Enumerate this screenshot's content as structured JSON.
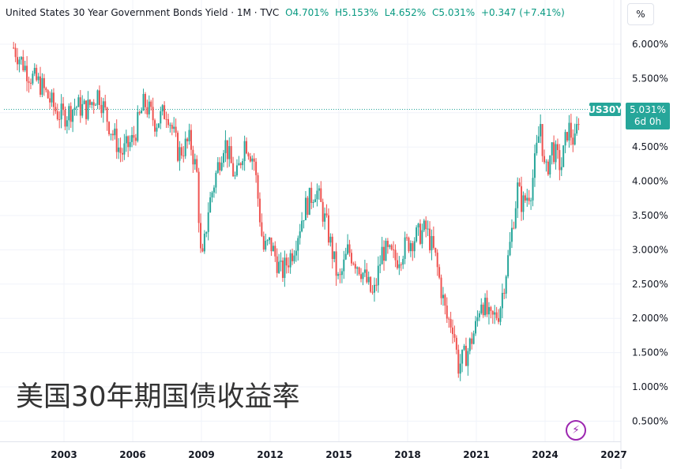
{
  "header": {
    "title": "United States 30 Year Government Bonds Yield · 1M · TVC",
    "open": "O4.701%",
    "high": "H5.153%",
    "low": "L4.652%",
    "close": "C5.031%",
    "change": "+0.347 (+7.41%)"
  },
  "scale_button": "%",
  "price_tag": {
    "symbol": "US30Y",
    "value": "5.031%",
    "countdown": "6d 0h"
  },
  "overlay_title": "美国30年期国债收益率",
  "icons": {
    "bolt": "lightning-icon"
  },
  "colors": {
    "up": "#26a69a",
    "down": "#ef5350",
    "grid": "#f0f3fa",
    "text": "#131722"
  },
  "chart_data": {
    "type": "line",
    "title": "United States 30 Year Government Bonds Yield",
    "x_ticks": [
      "2003",
      "2006",
      "2009",
      "2012",
      "2015",
      "2018",
      "2021",
      "2024",
      "2027"
    ],
    "y_ticks": [
      "6.000%",
      "5.500%",
      "5.000%",
      "4.500%",
      "4.000%",
      "3.500%",
      "3.000%",
      "2.500%",
      "2.000%",
      "1.500%",
      "1.000%",
      "0.500%"
    ],
    "ylim": [
      0.2,
      6.3
    ],
    "xlim": [
      2000.7,
      2027.4
    ],
    "last_value": 5.031,
    "series": [
      {
        "values": [
          [
            2000.8,
            5.95
          ],
          [
            2001.5,
            5.55
          ],
          [
            2002.0,
            5.4
          ],
          [
            2002.7,
            5.0
          ],
          [
            2003.0,
            4.95
          ],
          [
            2003.5,
            5.1
          ],
          [
            2004.0,
            5.05
          ],
          [
            2004.5,
            5.3
          ],
          [
            2005.0,
            4.8
          ],
          [
            2005.5,
            4.4
          ],
          [
            2006.0,
            4.6
          ],
          [
            2006.5,
            5.15
          ],
          [
            2007.0,
            4.85
          ],
          [
            2007.5,
            5.05
          ],
          [
            2008.0,
            4.4
          ],
          [
            2008.5,
            4.6
          ],
          [
            2008.8,
            4.1
          ],
          [
            2009.0,
            2.7
          ],
          [
            2009.3,
            3.6
          ],
          [
            2009.7,
            4.2
          ],
          [
            2010.0,
            4.6
          ],
          [
            2010.5,
            4.0
          ],
          [
            2010.9,
            4.6
          ],
          [
            2011.3,
            4.3
          ],
          [
            2011.7,
            3.0
          ],
          [
            2012.0,
            3.1
          ],
          [
            2012.5,
            2.65
          ],
          [
            2013.0,
            3.0
          ],
          [
            2013.5,
            3.6
          ],
          [
            2014.0,
            3.9
          ],
          [
            2014.5,
            3.3
          ],
          [
            2015.0,
            2.5
          ],
          [
            2015.4,
            3.0
          ],
          [
            2016.0,
            2.7
          ],
          [
            2016.5,
            2.3
          ],
          [
            2016.9,
            3.0
          ],
          [
            2017.5,
            2.85
          ],
          [
            2018.0,
            3.1
          ],
          [
            2018.8,
            3.3
          ],
          [
            2019.2,
            2.9
          ],
          [
            2019.7,
            2.0
          ],
          [
            2020.0,
            1.9
          ],
          [
            2020.2,
            1.3
          ],
          [
            2020.6,
            1.5
          ],
          [
            2021.0,
            1.9
          ],
          [
            2021.2,
            2.3
          ],
          [
            2021.6,
            1.95
          ],
          [
            2022.0,
            2.1
          ],
          [
            2022.4,
            2.9
          ],
          [
            2022.8,
            3.9
          ],
          [
            2023.0,
            3.65
          ],
          [
            2023.4,
            3.9
          ],
          [
            2023.8,
            4.85
          ],
          [
            2024.0,
            4.05
          ],
          [
            2024.3,
            4.5
          ],
          [
            2024.7,
            4.2
          ],
          [
            2025.0,
            4.8
          ],
          [
            2025.3,
            4.55
          ],
          [
            2025.5,
            5.03
          ]
        ]
      }
    ]
  }
}
